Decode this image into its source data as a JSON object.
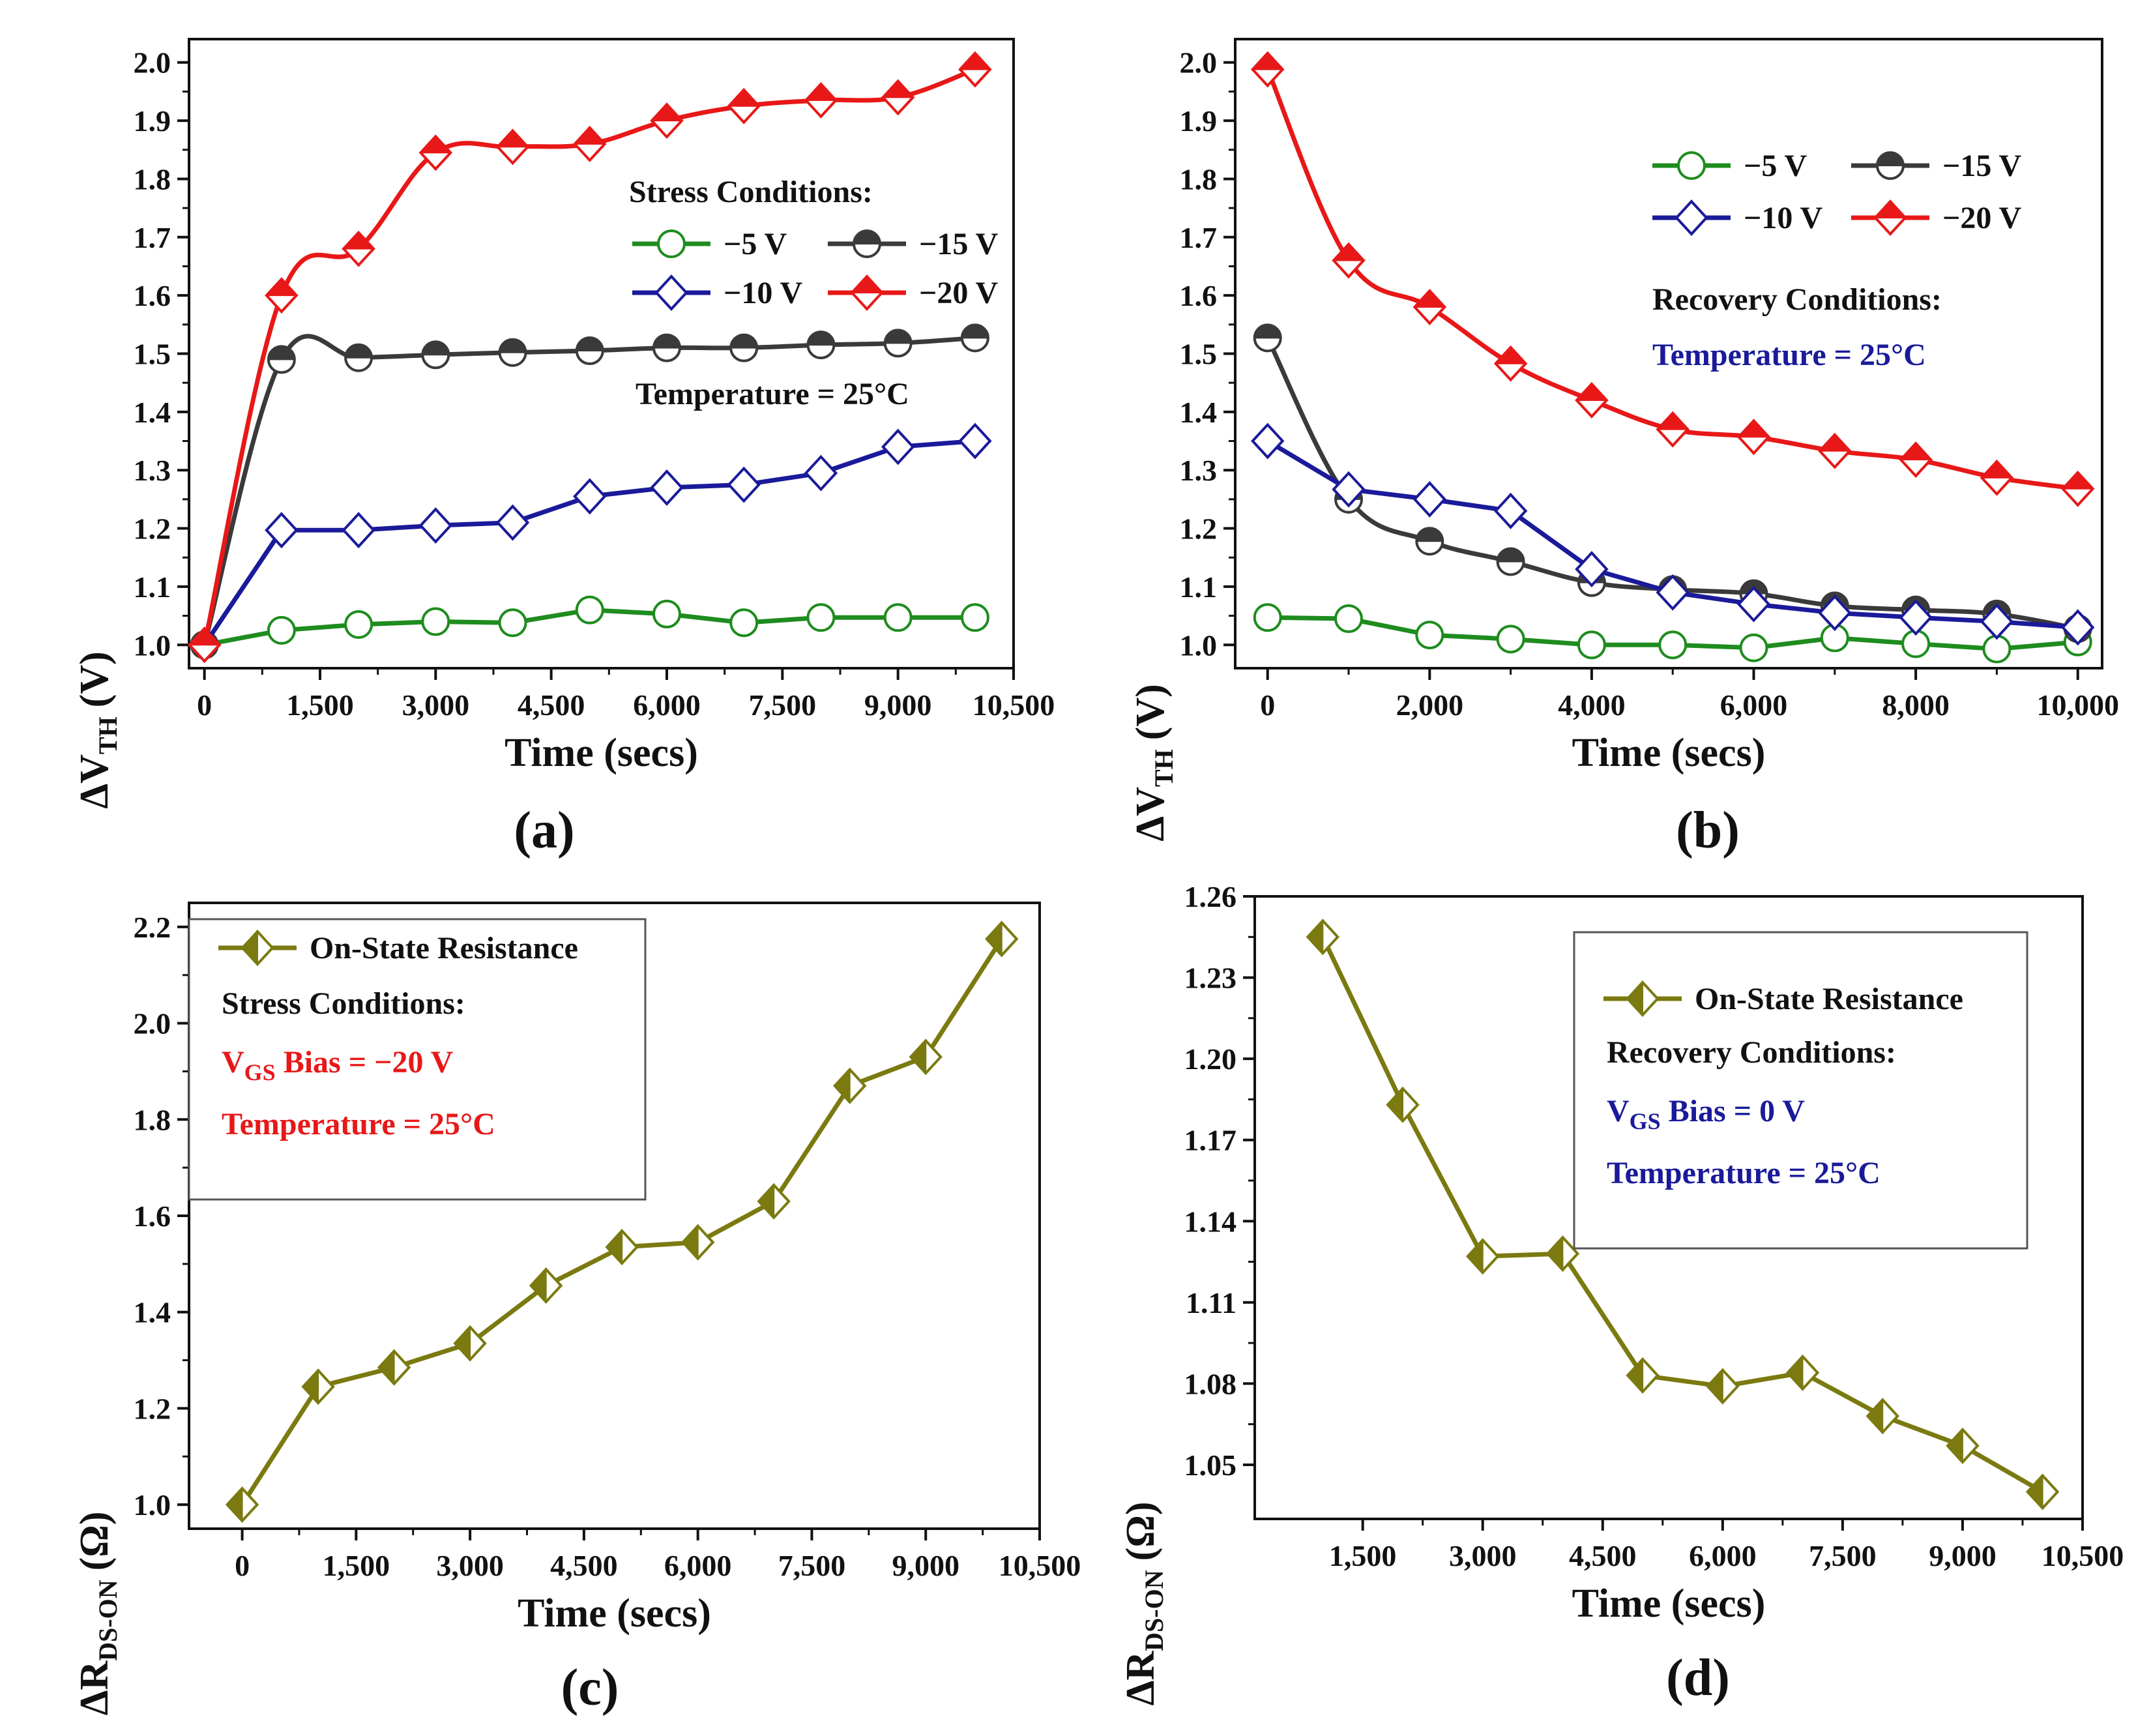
{
  "chart_data": [
    {
      "type": "line",
      "panel_label": "(a)",
      "xlabel": "Time (secs)",
      "ylabel": {
        "main": "ΔV",
        "sub": "TH",
        "unit": "(V)"
      },
      "xlim": [
        -200,
        10500
      ],
      "ylim": [
        0.96,
        2.04
      ],
      "x_ticks": [
        0,
        1500,
        3000,
        4500,
        6000,
        7500,
        9000,
        10500
      ],
      "x_tick_labels": [
        "0",
        "1,500",
        "3,000",
        "4,500",
        "6,000",
        "7,500",
        "9,000",
        "10,500"
      ],
      "y_ticks": [
        1.0,
        1.1,
        1.2,
        1.3,
        1.4,
        1.5,
        1.6,
        1.7,
        1.8,
        1.9,
        2.0
      ],
      "y_tick_labels": [
        "1.0",
        "1.1",
        "1.2",
        "1.3",
        "1.4",
        "1.5",
        "1.6",
        "1.7",
        "1.8",
        "1.9",
        "2.0"
      ],
      "x": [
        0,
        1000,
        2000,
        3000,
        4000,
        5000,
        6000,
        7000,
        8000,
        9000,
        10000
      ],
      "series": [
        {
          "name": "−5 V",
          "color": "#1e8c1e",
          "marker": "circle-open",
          "values": [
            1.0,
            1.025,
            1.035,
            1.04,
            1.038,
            1.06,
            1.053,
            1.038,
            1.047,
            1.047,
            1.047
          ]
        },
        {
          "name": "−15 V",
          "color": "#3a3a3a",
          "marker": "circle-half",
          "values": [
            1.0,
            1.49,
            1.493,
            1.498,
            1.502,
            1.505,
            1.51,
            1.51,
            1.515,
            1.518,
            1.527
          ]
        },
        {
          "name": "−10 V",
          "color": "#1a1a9a",
          "marker": "diamond-open",
          "values": [
            1.0,
            1.197,
            1.197,
            1.205,
            1.21,
            1.255,
            1.27,
            1.275,
            1.295,
            1.34,
            1.35
          ]
        },
        {
          "name": "−20 V",
          "color": "#e81818",
          "marker": "diamond-half",
          "values": [
            1.0,
            1.6,
            1.68,
            1.845,
            1.855,
            1.86,
            1.9,
            1.925,
            1.935,
            1.94,
            1.988
          ]
        }
      ],
      "legend_title": "Stress Conditions:",
      "notes": [
        {
          "text": "Temperature = 25°C",
          "color": "#111111"
        }
      ]
    },
    {
      "type": "line",
      "panel_label": "(b)",
      "xlabel": "Time (secs)",
      "ylabel": {
        "main": "ΔV",
        "sub": "TH",
        "unit": "(V)"
      },
      "xlim": [
        -400,
        10300
      ],
      "ylim": [
        0.96,
        2.04
      ],
      "x_ticks": [
        0,
        2000,
        4000,
        6000,
        8000,
        10000
      ],
      "x_tick_labels": [
        "0",
        "2,000",
        "4,000",
        "6,000",
        "8,000",
        "10,000"
      ],
      "y_ticks": [
        1.0,
        1.1,
        1.2,
        1.3,
        1.4,
        1.5,
        1.6,
        1.7,
        1.8,
        1.9,
        2.0
      ],
      "y_tick_labels": [
        "1.0",
        "1.1",
        "1.2",
        "1.3",
        "1.4",
        "1.5",
        "1.6",
        "1.7",
        "1.8",
        "1.9",
        "2.0"
      ],
      "x": [
        0,
        1000,
        2000,
        3000,
        4000,
        5000,
        6000,
        7000,
        8000,
        9000,
        10000
      ],
      "series": [
        {
          "name": "−5 V",
          "color": "#1e8c1e",
          "marker": "circle-open",
          "values": [
            1.047,
            1.045,
            1.017,
            1.01,
            1.0,
            1.0,
            0.995,
            1.012,
            1.002,
            0.993,
            1.005
          ]
        },
        {
          "name": "−15 V",
          "color": "#3a3a3a",
          "marker": "circle-half",
          "values": [
            1.527,
            1.25,
            1.178,
            1.143,
            1.107,
            1.095,
            1.088,
            1.067,
            1.06,
            1.053,
            1.028
          ]
        },
        {
          "name": "−10 V",
          "color": "#1a1a9a",
          "marker": "diamond-open",
          "values": [
            1.35,
            1.267,
            1.25,
            1.23,
            1.13,
            1.09,
            1.07,
            1.055,
            1.047,
            1.04,
            1.03
          ]
        },
        {
          "name": "−20 V",
          "color": "#e81818",
          "marker": "diamond-half",
          "values": [
            1.988,
            1.66,
            1.58,
            1.483,
            1.42,
            1.37,
            1.357,
            1.333,
            1.318,
            1.287,
            1.268
          ]
        }
      ],
      "legend_title": "Recovery Conditions:",
      "notes": [
        {
          "text": "Temperature = 25°C",
          "color": "#1a1a9a"
        }
      ]
    },
    {
      "type": "line",
      "panel_label": "(c)",
      "xlabel": "Time (secs)",
      "ylabel": {
        "main": "ΔR",
        "sub": "DS-ON",
        "unit": "(Ω)"
      },
      "xlim": [
        -700,
        10500
      ],
      "ylim": [
        0.95,
        2.25
      ],
      "x_ticks": [
        0,
        1500,
        3000,
        4500,
        6000,
        7500,
        9000,
        10500
      ],
      "x_tick_labels": [
        "0",
        "1,500",
        "3,000",
        "4,500",
        "6,000",
        "7,500",
        "9,000",
        "10,500"
      ],
      "y_ticks": [
        1.0,
        1.2,
        1.4,
        1.6,
        1.8,
        2.0,
        2.2
      ],
      "y_tick_labels": [
        "1.0",
        "1.2",
        "1.4",
        "1.6",
        "1.8",
        "2.0",
        "2.2"
      ],
      "x": [
        0,
        1000,
        2000,
        3000,
        4000,
        5000,
        6000,
        7000,
        8000,
        9000,
        10000
      ],
      "series": [
        {
          "name": "On-State Resistance",
          "color": "#7a7a10",
          "marker": "diamond-half",
          "values": [
            1.0,
            1.245,
            1.285,
            1.335,
            1.455,
            1.535,
            1.545,
            1.63,
            1.87,
            1.93,
            2.175
          ]
        }
      ],
      "legend_title": "Stress Conditions:",
      "notes": [
        {
          "main": "V",
          "sub": "GS",
          "rest": " Bias = −20 V",
          "color": "#e81818"
        },
        {
          "text": "Temperature = 25°C",
          "color": "#e81818"
        }
      ]
    },
    {
      "type": "line",
      "panel_label": "(d)",
      "xlabel": "Time (secs)",
      "ylabel": {
        "main": "ΔR",
        "sub": "DS-ON",
        "unit": "(Ω)"
      },
      "xlim": [
        150,
        10500
      ],
      "ylim": [
        1.03,
        1.26
      ],
      "x_ticks": [
        1500,
        3000,
        4500,
        6000,
        7500,
        9000,
        10500
      ],
      "x_tick_labels": [
        "1,500",
        "3,000",
        "4,500",
        "6,000",
        "7,500",
        "9,000",
        "10,500"
      ],
      "y_ticks": [
        1.05,
        1.08,
        1.11,
        1.14,
        1.17,
        1.2,
        1.23,
        1.26
      ],
      "y_tick_labels": [
        "1.05",
        "1.08",
        "1.11",
        "1.14",
        "1.17",
        "1.20",
        "1.23",
        "1.26"
      ],
      "x": [
        1000,
        2000,
        3000,
        4000,
        5000,
        6000,
        7000,
        8000,
        9000,
        10000
      ],
      "series": [
        {
          "name": "On-State Resistance",
          "color": "#7a7a10",
          "marker": "diamond-half",
          "values": [
            1.245,
            1.183,
            1.127,
            1.128,
            1.083,
            1.079,
            1.084,
            1.068,
            1.057,
            1.04
          ]
        }
      ],
      "legend_title": "Recovery Conditions:",
      "notes": [
        {
          "main": "V",
          "sub": "GS",
          "rest": " Bias = 0 V",
          "color": "#1a1a9a"
        },
        {
          "text": "Temperature = 25°C",
          "color": "#1a1a9a"
        }
      ]
    }
  ]
}
